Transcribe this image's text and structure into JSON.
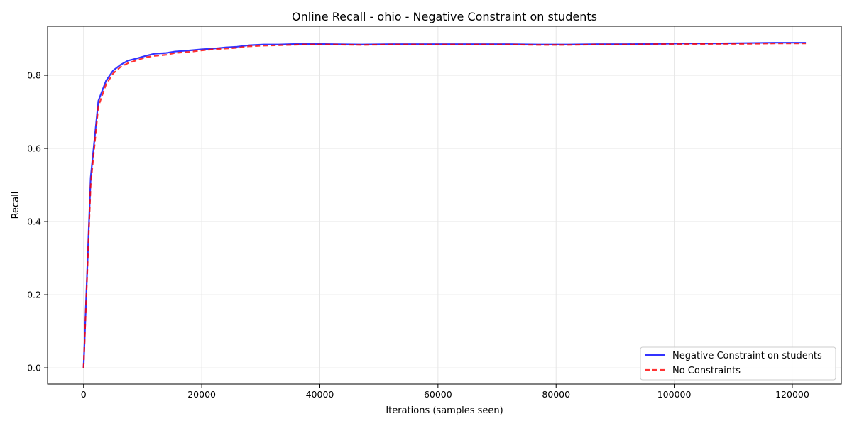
{
  "chart_data": {
    "type": "line",
    "title": "Online Recall - ohio - Negative Constraint on students",
    "xlabel": "Iterations (samples seen)",
    "ylabel": "Recall",
    "xlim": [
      -6100,
      128300
    ],
    "ylim": [
      -0.0445,
      0.934
    ],
    "xticks": [
      0,
      20000,
      40000,
      60000,
      80000,
      100000,
      120000
    ],
    "yticks": [
      0.0,
      0.2,
      0.4,
      0.6,
      0.8
    ],
    "xtick_labels": [
      "0",
      "20000",
      "40000",
      "60000",
      "80000",
      "100000",
      "120000"
    ],
    "ytick_labels": [
      "0.0",
      "0.2",
      "0.4",
      "0.6",
      "0.8"
    ],
    "grid": true,
    "legend_position": "lower-right",
    "series": [
      {
        "name": "Negative Constraint on students",
        "color": "#0000ff",
        "style": "solid",
        "x": [
          0,
          1200,
          2500,
          3800,
          5000,
          6200,
          7500,
          9000,
          10500,
          12000,
          14000,
          15500,
          18000,
          20000,
          22000,
          24000,
          26000,
          28000,
          30500,
          33000,
          37000,
          42000,
          47000,
          52000,
          57000,
          62000,
          67000,
          72000,
          77000,
          82000,
          87000,
          92000,
          97000,
          102000,
          107000,
          112000,
          117000,
          122300
        ],
        "y": [
          0.0,
          0.52,
          0.73,
          0.785,
          0.813,
          0.828,
          0.84,
          0.846,
          0.853,
          0.859,
          0.861,
          0.865,
          0.868,
          0.871,
          0.873,
          0.876,
          0.878,
          0.882,
          0.884,
          0.884,
          0.886,
          0.885,
          0.884,
          0.885,
          0.885,
          0.885,
          0.885,
          0.885,
          0.884,
          0.884,
          0.885,
          0.885,
          0.886,
          0.887,
          0.887,
          0.888,
          0.889,
          0.889
        ]
      },
      {
        "name": "No Constraints",
        "color": "#ff0000",
        "style": "dashed",
        "x": [
          0,
          1200,
          2500,
          3800,
          5000,
          6200,
          7500,
          9000,
          10500,
          12000,
          14000,
          15500,
          18000,
          20000,
          22000,
          24000,
          26000,
          28000,
          30500,
          33000,
          37000,
          42000,
          47000,
          52000,
          57000,
          62000,
          67000,
          72000,
          77000,
          82000,
          87000,
          92000,
          97000,
          102000,
          107000,
          112000,
          117000,
          122300
        ],
        "y": [
          0.0,
          0.5,
          0.715,
          0.775,
          0.805,
          0.822,
          0.833,
          0.841,
          0.849,
          0.853,
          0.856,
          0.861,
          0.864,
          0.868,
          0.871,
          0.873,
          0.875,
          0.879,
          0.881,
          0.882,
          0.884,
          0.884,
          0.883,
          0.884,
          0.884,
          0.884,
          0.884,
          0.884,
          0.883,
          0.883,
          0.884,
          0.884,
          0.885,
          0.885,
          0.886,
          0.886,
          0.887,
          0.887
        ]
      }
    ]
  }
}
